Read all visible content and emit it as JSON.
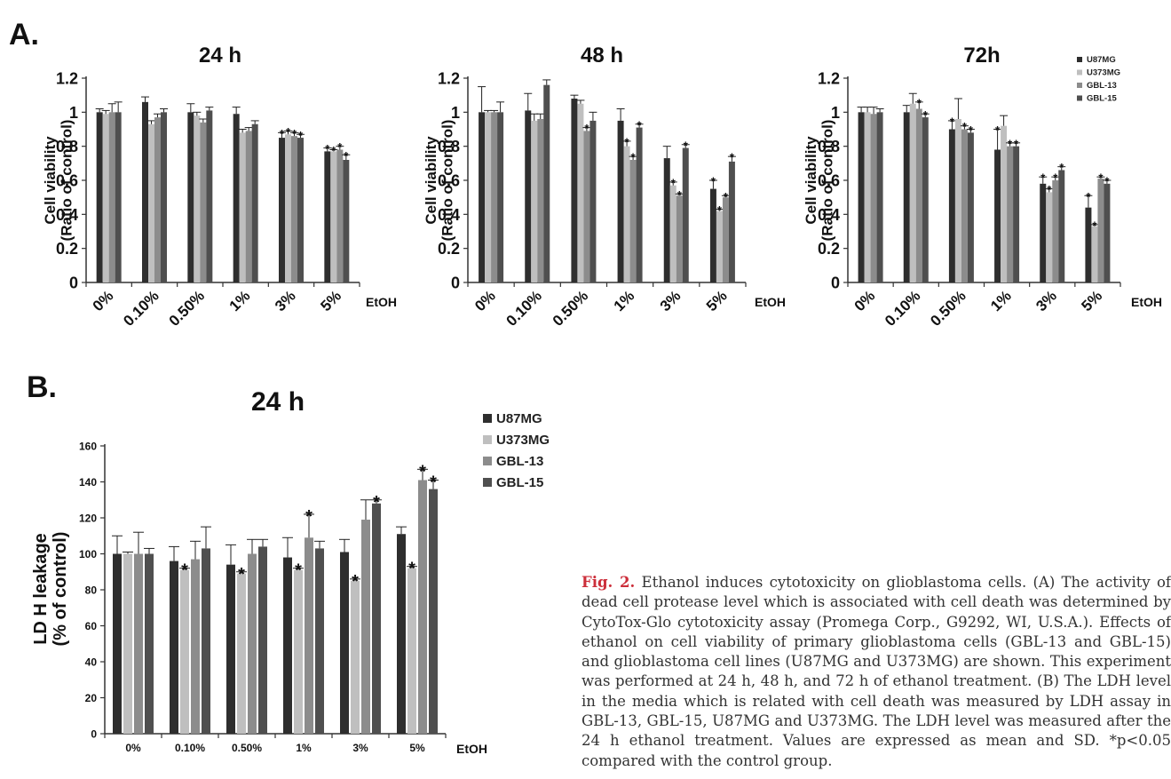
{
  "panel_labels": {
    "a": "A.",
    "b": "B."
  },
  "colors": {
    "U87MG": "#2e2e2e",
    "U373MG": "#bfbfbf",
    "GBL-13": "#8c8c8c",
    "GBL-15": "#4f4f4f"
  },
  "chart_data": [
    {
      "type": "bar",
      "title": "24 h",
      "ylabel_line1": "Cell  viability",
      "ylabel_line2": "(Ratio of control)",
      "xlabel": "EtOH",
      "ylim": [
        0,
        1.2
      ],
      "yticks": [
        "0",
        "0.2",
        "0.4",
        "0.6",
        "0.8",
        "1",
        "1.2"
      ],
      "categories": [
        "0%",
        "0.10%",
        "0.50%",
        "1%",
        "3%",
        "5%"
      ],
      "series": [
        {
          "name": "U87MG",
          "values": [
            1.0,
            1.06,
            1.0,
            0.99,
            0.85,
            0.77
          ],
          "errors": [
            0.02,
            0.03,
            0.05,
            0.04,
            0.03,
            0.02
          ],
          "sig": [
            false,
            false,
            false,
            false,
            true,
            true
          ]
        },
        {
          "name": "U373MG",
          "values": [
            0.99,
            0.93,
            0.98,
            0.88,
            0.87,
            0.77
          ],
          "errors": [
            0.02,
            0.02,
            0.02,
            0.02,
            0.02,
            0.01
          ],
          "sig": [
            false,
            false,
            false,
            false,
            true,
            true
          ]
        },
        {
          "name": "GBL-13",
          "values": [
            1.0,
            0.97,
            0.94,
            0.89,
            0.86,
            0.78
          ],
          "errors": [
            0.05,
            0.02,
            0.02,
            0.02,
            0.02,
            0.02
          ],
          "sig": [
            false,
            false,
            false,
            false,
            true,
            true
          ]
        },
        {
          "name": "GBL-15",
          "values": [
            1.0,
            1.0,
            1.01,
            0.93,
            0.85,
            0.72
          ],
          "errors": [
            0.06,
            0.02,
            0.02,
            0.02,
            0.02,
            0.03
          ],
          "sig": [
            false,
            false,
            false,
            false,
            true,
            true
          ]
        }
      ]
    },
    {
      "type": "bar",
      "title": "48 h",
      "ylabel_line1": "Cell  viability",
      "ylabel_line2": "(Ratio of control)",
      "xlabel": "EtOH",
      "ylim": [
        0,
        1.2
      ],
      "yticks": [
        "0",
        "0.2",
        "0.4",
        "0.6",
        "0.8",
        "1",
        "1.2"
      ],
      "categories": [
        "0%",
        "0.10%",
        "0.50%",
        "1%",
        "3%",
        "5%"
      ],
      "series": [
        {
          "name": "U87MG",
          "values": [
            1.0,
            1.01,
            1.08,
            0.95,
            0.73,
            0.55
          ],
          "errors": [
            0.15,
            0.1,
            0.02,
            0.07,
            0.07,
            0.05
          ],
          "sig": [
            false,
            false,
            false,
            false,
            false,
            true
          ]
        },
        {
          "name": "U373MG",
          "values": [
            1.0,
            0.95,
            1.05,
            0.8,
            0.57,
            0.42
          ],
          "errors": [
            0.01,
            0.04,
            0.02,
            0.03,
            0.02,
            0.01
          ],
          "sig": [
            false,
            false,
            false,
            true,
            true,
            true
          ]
        },
        {
          "name": "GBL-13",
          "values": [
            1.0,
            0.96,
            0.89,
            0.72,
            0.51,
            0.5
          ],
          "errors": [
            0.01,
            0.03,
            0.02,
            0.02,
            0.01,
            0.01
          ],
          "sig": [
            false,
            false,
            true,
            true,
            true,
            true
          ]
        },
        {
          "name": "GBL-15",
          "values": [
            1.0,
            1.16,
            0.95,
            0.91,
            0.79,
            0.71
          ],
          "errors": [
            0.06,
            0.03,
            0.05,
            0.02,
            0.02,
            0.03
          ],
          "sig": [
            false,
            false,
            false,
            true,
            true,
            true
          ]
        }
      ]
    },
    {
      "type": "bar",
      "title": "72h",
      "ylabel_line1": "Cell  viability",
      "ylabel_line2": "(Ratio of control)",
      "xlabel": "EtOH",
      "ylim": [
        0,
        1.2
      ],
      "yticks": [
        "0",
        "0.2",
        "0.4",
        "0.6",
        "0.8",
        "1",
        "1.2"
      ],
      "categories": [
        "0%",
        "0.10%",
        "0.50%",
        "1%",
        "3%",
        "5%"
      ],
      "legend": [
        "U87MG",
        "U373MG",
        "GBL-13",
        "GBL-15"
      ],
      "series": [
        {
          "name": "U87MG",
          "values": [
            1.0,
            1.0,
            0.9,
            0.78,
            0.58,
            0.44
          ],
          "errors": [
            0.03,
            0.04,
            0.05,
            0.12,
            0.04,
            0.07
          ],
          "sig": [
            false,
            false,
            true,
            true,
            true,
            true
          ]
        },
        {
          "name": "U373MG",
          "values": [
            1.0,
            1.05,
            0.96,
            0.92,
            0.53,
            0.33
          ],
          "errors": [
            0.03,
            0.06,
            0.12,
            0.06,
            0.02,
            0.01
          ],
          "sig": [
            false,
            false,
            false,
            false,
            true,
            true
          ]
        },
        {
          "name": "GBL-13",
          "values": [
            0.99,
            1.02,
            0.9,
            0.8,
            0.6,
            0.61
          ],
          "errors": [
            0.04,
            0.04,
            0.02,
            0.02,
            0.02,
            0.01
          ],
          "sig": [
            false,
            true,
            true,
            true,
            true,
            true
          ]
        },
        {
          "name": "GBL-15",
          "values": [
            1.0,
            0.97,
            0.88,
            0.8,
            0.66,
            0.58
          ],
          "errors": [
            0.02,
            0.02,
            0.02,
            0.02,
            0.02,
            0.02
          ],
          "sig": [
            false,
            true,
            true,
            true,
            true,
            true
          ]
        }
      ]
    },
    {
      "type": "bar",
      "title": "24 h",
      "ylabel_line1": "LD H  leakage",
      "ylabel_line2": "(% of control)",
      "xlabel": "EtOH",
      "ylim": [
        0,
        160
      ],
      "yticks": [
        "0",
        "20",
        "40",
        "60",
        "80",
        "100",
        "120",
        "140",
        "160"
      ],
      "categories": [
        "0%",
        "0.10%",
        "0.50%",
        "1%",
        "3%",
        "5%"
      ],
      "legend": [
        "U87MG",
        "U373MG",
        "GBL-13",
        "GBL-15"
      ],
      "series": [
        {
          "name": "U87MG",
          "values": [
            100,
            96,
            94,
            98,
            101,
            111
          ],
          "errors": [
            10,
            8,
            11,
            11,
            7,
            4
          ],
          "sig": [
            false,
            false,
            false,
            false,
            false,
            false
          ]
        },
        {
          "name": "U373MG",
          "values": [
            100,
            91,
            89,
            91,
            85,
            92
          ],
          "errors": [
            1,
            1,
            1,
            1,
            1,
            1
          ],
          "sig": [
            false,
            true,
            true,
            true,
            true,
            true
          ]
        },
        {
          "name": "GBL-13",
          "values": [
            100,
            97,
            100,
            109,
            119,
            141
          ],
          "errors": [
            12,
            10,
            8,
            13,
            11,
            6
          ],
          "sig": [
            false,
            false,
            false,
            true,
            false,
            true
          ]
        },
        {
          "name": "GBL-15",
          "values": [
            100,
            103,
            104,
            103,
            128,
            136
          ],
          "errors": [
            3,
            12,
            4,
            4,
            2,
            5
          ],
          "sig": [
            false,
            false,
            false,
            false,
            true,
            true
          ]
        }
      ]
    }
  ],
  "caption": {
    "label": "Fig. 2.",
    "text": " Ethanol induces cytotoxicity on glioblastoma cells. (A) The activity of dead cell protease level which is associated with cell death was determined by CytoTox-Glo cytotoxicity assay (Promega Corp., G9292, WI, U.S.A.). Effects of ethanol on cell viability of primary glioblastoma cells (GBL-13 and GBL-15) and glioblastoma cell lines (U87MG and U373MG) are shown. This experiment was performed at 24 h, 48 h, and 72 h of ethanol treatment. (B) The LDH level in the media which is related with cell death was measured by LDH assay in GBL-13, GBL-15, U87MG and U373MG. The LDH level was measured after the 24 h ethanol treatment. Values are expressed as mean and SD. *p<0.05 compared with the control group."
  }
}
